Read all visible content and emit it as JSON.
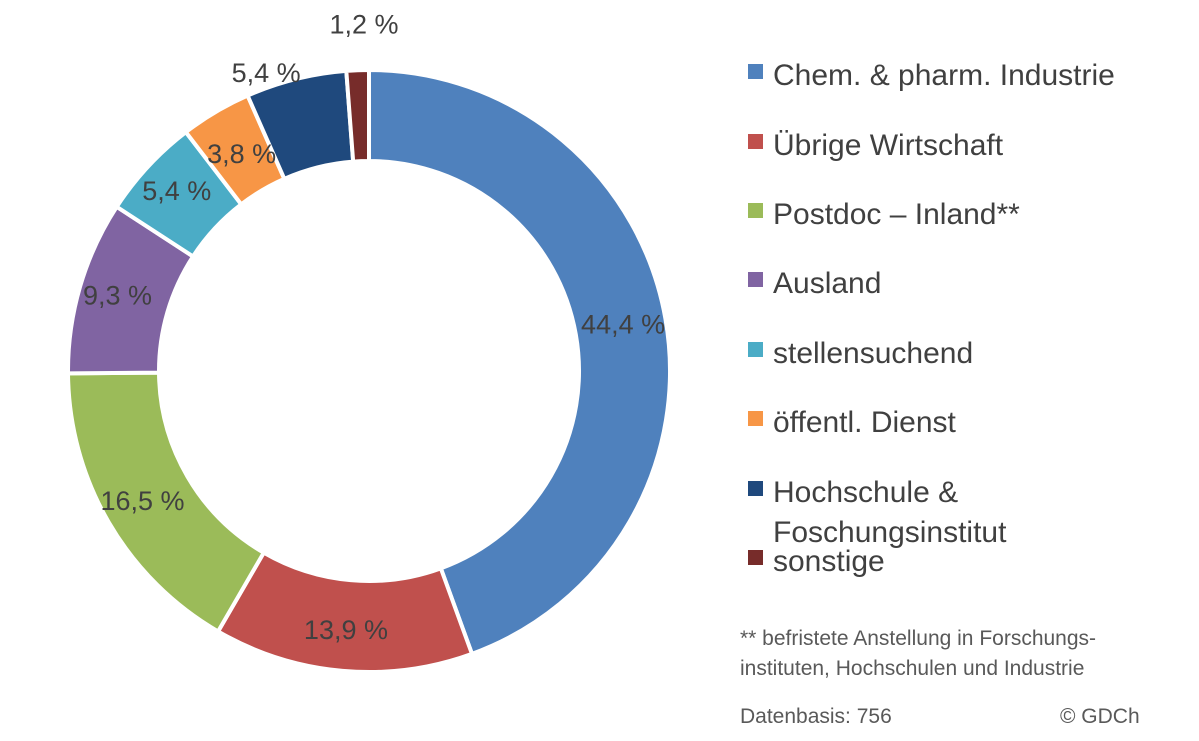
{
  "chart_data": {
    "type": "pie",
    "subtype": "donut",
    "title": "",
    "slices": [
      {
        "label": "Chem. & pharm. Industrie",
        "value": 44.4,
        "display": "44,4 %",
        "color": "#4F81BD"
      },
      {
        "label": "Übrige Wirtschaft",
        "value": 13.9,
        "display": "13,9 %",
        "color": "#C0504D"
      },
      {
        "label": "Postdoc – Inland**",
        "value": 16.5,
        "display": "16,5 %",
        "color": "#9BBB59"
      },
      {
        "label": "Ausland",
        "value": 9.3,
        "display": "9,3 %",
        "color": "#8064A2"
      },
      {
        "label": "stellensuchend",
        "value": 5.4,
        "display": "5,4 %",
        "color": "#4BACC6"
      },
      {
        "label": "öffentl. Dienst",
        "value": 3.8,
        "display": "3,8 %",
        "color": "#F79646"
      },
      {
        "label": "Hochschule & Foschungsinstitut",
        "value": 5.4,
        "display": "5,4 %",
        "color": "#1F497D"
      },
      {
        "label": "sonstige",
        "value": 1.2,
        "display": "1,2 %",
        "color": "#772C2A"
      }
    ],
    "legend_position": "right"
  },
  "footnote": {
    "line1": "** befristete Anstellung in Forschungs-",
    "line2": "instituten, Hochschulen und Industrie"
  },
  "footer": {
    "basis": "Datenbasis: 756",
    "copyright": "© GDCh"
  }
}
